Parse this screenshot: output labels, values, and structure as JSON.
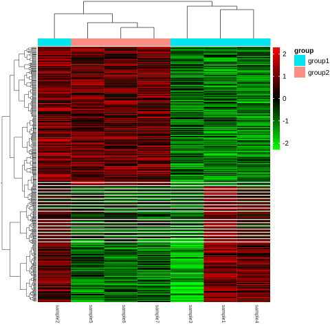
{
  "chart_data": {
    "type": "heatmap",
    "samples": [
      "sample2",
      "sample5",
      "sample6",
      "sample7",
      "sample3",
      "sample1",
      "sample4"
    ],
    "sample_groups": [
      "group1",
      "group2",
      "group2",
      "group2",
      "group1",
      "group1",
      "group1"
    ],
    "annotation_title": "group",
    "groups": [
      {
        "name": "group1",
        "color": "#00E5EE"
      },
      {
        "name": "group2",
        "color": "#FA8E83"
      }
    ],
    "scale_title": "",
    "scale_ticks": [
      2,
      1,
      0,
      -1,
      -2
    ],
    "scale_range": [
      -2.3,
      2.3
    ],
    "scale_colors": {
      "low": "#00FF00",
      "mid": "#000000",
      "high": "#FF0000"
    },
    "row_count": 400,
    "row_dendrogram": "present",
    "column_dendrogram": "present",
    "legend_placement": "right"
  }
}
